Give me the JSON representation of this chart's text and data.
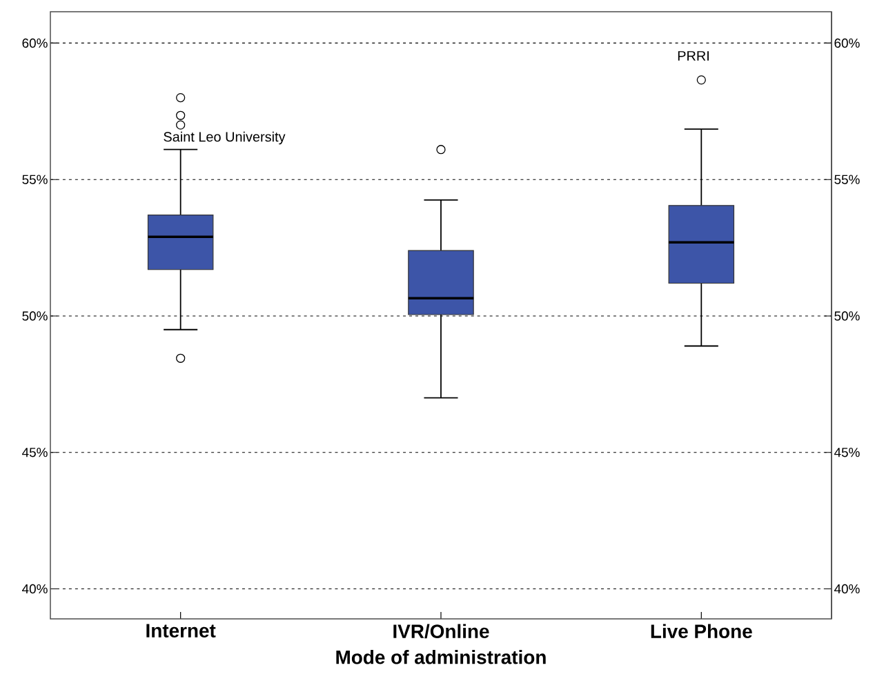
{
  "chart_data": {
    "type": "box",
    "xlabel": "Mode of administration",
    "categories": [
      "Internet",
      "IVR/Online",
      "Live Phone"
    ],
    "color": "#3d55a8",
    "boxes": [
      {
        "low": 49.5,
        "q1": 51.7,
        "median": 52.9,
        "q3": 53.7,
        "high": 56.1,
        "outliers": [
          58.0,
          57.35,
          57.0,
          48.45
        ]
      },
      {
        "low": 47.0,
        "q1": 50.05,
        "median": 50.65,
        "q3": 52.4,
        "high": 54.25,
        "outliers": [
          56.1
        ]
      },
      {
        "low": 48.9,
        "q1": 51.2,
        "median": 52.7,
        "q3": 54.05,
        "high": 56.85,
        "outliers": [
          58.65
        ]
      }
    ],
    "ylim": [
      38.9,
      61.15
    ],
    "yticks": [
      {
        "value": 40,
        "label": "40%"
      },
      {
        "value": 45,
        "label": "45%"
      },
      {
        "value": 50,
        "label": "50%"
      },
      {
        "value": 55,
        "label": "55%"
      },
      {
        "value": 60,
        "label": "60%"
      }
    ],
    "y2lim": [
      38.9,
      61.15
    ],
    "y2ticks": [
      {
        "value": 40,
        "label": "40%"
      },
      {
        "value": 45,
        "label": "45%"
      },
      {
        "value": 50,
        "label": "50%"
      },
      {
        "value": 55,
        "label": "55%"
      },
      {
        "value": 60,
        "label": "60%"
      }
    ],
    "grid": "y",
    "annotations": [
      "Saint Leo University",
      "PRRI"
    ]
  }
}
